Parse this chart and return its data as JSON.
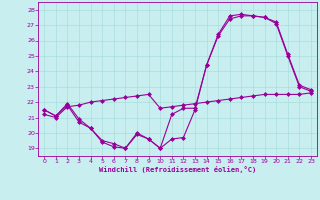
{
  "xlabel": "Windchill (Refroidissement éolien,°C)",
  "bg_color": "#c8eef0",
  "line_color": "#990099",
  "grid_color": "#aadddd",
  "xlim": [
    -0.5,
    23.5
  ],
  "ylim": [
    18.5,
    28.5
  ],
  "xticks": [
    0,
    1,
    2,
    3,
    4,
    5,
    6,
    7,
    8,
    9,
    10,
    11,
    12,
    13,
    14,
    15,
    16,
    17,
    18,
    19,
    20,
    21,
    22,
    23
  ],
  "yticks": [
    19,
    20,
    21,
    22,
    23,
    24,
    25,
    26,
    27,
    28
  ],
  "line1_x": [
    0,
    1,
    2,
    3,
    4,
    5,
    6,
    7,
    8,
    9,
    10,
    11,
    12,
    13,
    14,
    15,
    16,
    17,
    18,
    19,
    20,
    21,
    22,
    23
  ],
  "line1_y": [
    21.5,
    21.1,
    21.9,
    20.9,
    20.3,
    19.4,
    19.1,
    19.0,
    19.9,
    19.6,
    19.0,
    19.6,
    19.7,
    21.5,
    24.4,
    26.3,
    27.4,
    27.6,
    27.6,
    27.5,
    27.1,
    25.0,
    23.0,
    22.7
  ],
  "line2_x": [
    0,
    1,
    2,
    3,
    4,
    5,
    6,
    7,
    8,
    9,
    10,
    11,
    12,
    13,
    14,
    15,
    16,
    17,
    18,
    19,
    20,
    21,
    22,
    23
  ],
  "line2_y": [
    21.5,
    21.1,
    21.8,
    20.7,
    20.3,
    19.5,
    19.3,
    19.0,
    20.0,
    19.6,
    19.0,
    21.2,
    21.6,
    21.6,
    24.4,
    26.4,
    27.6,
    27.7,
    27.6,
    27.5,
    27.2,
    25.1,
    23.1,
    22.8
  ],
  "line3_x": [
    0,
    1,
    2,
    3,
    4,
    5,
    6,
    7,
    8,
    9,
    10,
    11,
    12,
    13,
    14,
    15,
    16,
    17,
    18,
    19,
    20,
    21,
    22,
    23
  ],
  "line3_y": [
    21.2,
    21.0,
    21.7,
    21.8,
    22.0,
    22.1,
    22.2,
    22.3,
    22.4,
    22.5,
    21.6,
    21.7,
    21.8,
    21.9,
    22.0,
    22.1,
    22.2,
    22.3,
    22.4,
    22.5,
    22.5,
    22.5,
    22.5,
    22.6
  ]
}
